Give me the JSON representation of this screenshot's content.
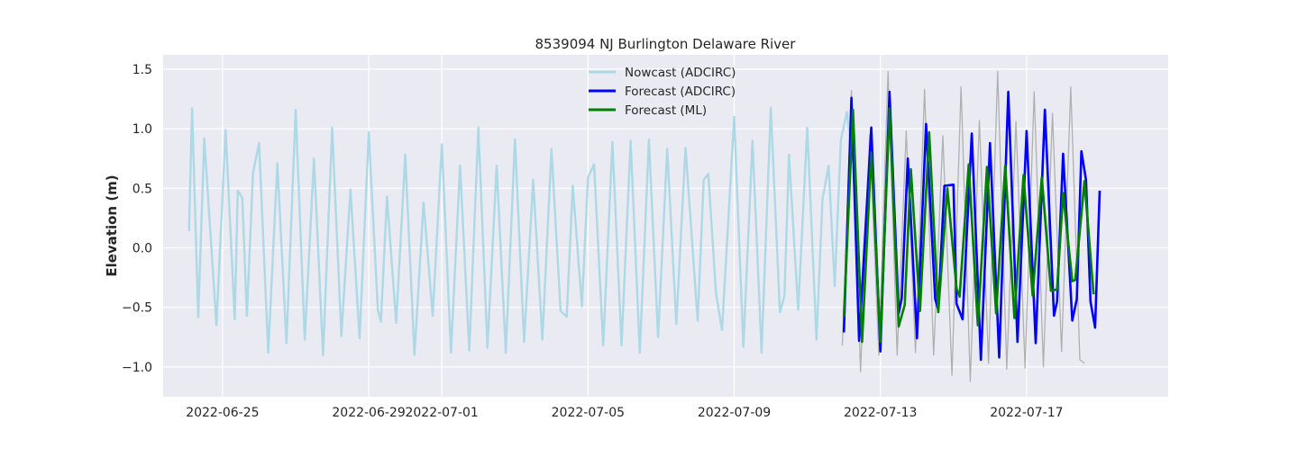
{
  "chart_data": {
    "type": "line",
    "title": "8539094 NJ Burlington Delaware River",
    "xlabel": "",
    "ylabel": "Elevation (m)",
    "xlim": [
      "2022-06-23T09:00",
      "2022-07-20T21:00"
    ],
    "ylim": [
      -1.25,
      1.62
    ],
    "x_ticks": [
      "2022-06-25",
      "2022-06-29",
      "2022-07-01",
      "2022-07-05",
      "2022-07-09",
      "2022-07-13",
      "2022-07-17"
    ],
    "y_ticks": [
      -1.0,
      -0.5,
      0.0,
      0.5,
      1.0,
      1.5
    ],
    "grid": true,
    "legend_position": "top-center",
    "legend": [
      "Nowcast (ADCIRC)",
      "Forecast (ADCIRC)",
      "Forecast (ML)"
    ],
    "colors": {
      "background": "#eaeaf2",
      "grid": "#ffffff",
      "nowcast": "#add8e6",
      "forecast_adcirc": "#0000ff",
      "forecast_ml": "#008000",
      "observed": "#b0b0b0"
    },
    "series": [
      {
        "name": "Nowcast (ADCIRC)",
        "color": "#add8e6",
        "points": [
          [
            "2022-06-24T02:00",
            0.14
          ],
          [
            "2022-06-24T04:00",
            1.17
          ],
          [
            "2022-06-24T08:00",
            -0.58
          ],
          [
            "2022-06-24T12:00",
            0.92
          ],
          [
            "2022-06-24T20:00",
            -0.65
          ],
          [
            "2022-06-25T02:00",
            0.99
          ],
          [
            "2022-06-25T08:00",
            -0.6
          ],
          [
            "2022-06-25T10:00",
            0.48
          ],
          [
            "2022-06-25T13:00",
            0.42
          ],
          [
            "2022-06-25T16:00",
            -0.57
          ],
          [
            "2022-06-25T20:00",
            0.63
          ],
          [
            "2022-06-26T00:00",
            0.88
          ],
          [
            "2022-06-26T06:00",
            -0.88
          ],
          [
            "2022-06-26T12:00",
            0.71
          ],
          [
            "2022-06-26T18:00",
            -0.8
          ],
          [
            "2022-06-27T00:00",
            1.16
          ],
          [
            "2022-06-27T06:00",
            -0.77
          ],
          [
            "2022-06-27T12:00",
            0.75
          ],
          [
            "2022-06-27T18:00",
            -0.9
          ],
          [
            "2022-06-28T00:00",
            1.01
          ],
          [
            "2022-06-28T06:00",
            -0.74
          ],
          [
            "2022-06-28T12:00",
            0.49
          ],
          [
            "2022-06-28T18:00",
            -0.76
          ],
          [
            "2022-06-29T00:00",
            0.97
          ],
          [
            "2022-06-29T06:00",
            -0.52
          ],
          [
            "2022-06-29T08:00",
            -0.62
          ],
          [
            "2022-06-29T12:00",
            0.43
          ],
          [
            "2022-06-29T18:00",
            -0.63
          ],
          [
            "2022-06-30T00:00",
            0.78
          ],
          [
            "2022-06-30T06:00",
            -0.9
          ],
          [
            "2022-06-30T12:00",
            0.38
          ],
          [
            "2022-06-30T18:00",
            -0.57
          ],
          [
            "2022-07-01T00:00",
            0.87
          ],
          [
            "2022-07-01T06:00",
            -0.88
          ],
          [
            "2022-07-01T12:00",
            0.69
          ],
          [
            "2022-07-01T18:00",
            -0.86
          ],
          [
            "2022-07-02T00:00",
            1.01
          ],
          [
            "2022-07-02T06:00",
            -0.84
          ],
          [
            "2022-07-02T12:00",
            0.69
          ],
          [
            "2022-07-02T18:00",
            -0.88
          ],
          [
            "2022-07-03T00:00",
            0.91
          ],
          [
            "2022-07-03T06:00",
            -0.79
          ],
          [
            "2022-07-03T12:00",
            0.57
          ],
          [
            "2022-07-03T18:00",
            -0.77
          ],
          [
            "2022-07-04T00:00",
            0.83
          ],
          [
            "2022-07-04T06:00",
            -0.53
          ],
          [
            "2022-07-04T10:00",
            -0.58
          ],
          [
            "2022-07-04T14:00",
            0.52
          ],
          [
            "2022-07-04T20:00",
            -0.49
          ],
          [
            "2022-07-05T00:00",
            0.59
          ],
          [
            "2022-07-05T04:00",
            0.7
          ],
          [
            "2022-07-05T10:00",
            -0.82
          ],
          [
            "2022-07-05T16:00",
            0.89
          ],
          [
            "2022-07-05T22:00",
            -0.82
          ],
          [
            "2022-07-06T04:00",
            0.9
          ],
          [
            "2022-07-06T10:00",
            -0.88
          ],
          [
            "2022-07-06T16:00",
            0.91
          ],
          [
            "2022-07-06T22:00",
            -0.75
          ],
          [
            "2022-07-07T04:00",
            0.83
          ],
          [
            "2022-07-07T10:00",
            -0.64
          ],
          [
            "2022-07-07T16:00",
            0.84
          ],
          [
            "2022-07-08T00:00",
            -0.61
          ],
          [
            "2022-07-08T04:00",
            0.57
          ],
          [
            "2022-07-08T07:00",
            0.62
          ],
          [
            "2022-07-08T12:00",
            -0.38
          ],
          [
            "2022-07-08T16:00",
            -0.69
          ],
          [
            "2022-07-09T00:00",
            1.1
          ],
          [
            "2022-07-09T06:00",
            -0.83
          ],
          [
            "2022-07-09T12:00",
            0.9
          ],
          [
            "2022-07-09T18:00",
            -0.88
          ],
          [
            "2022-07-10T00:00",
            1.18
          ],
          [
            "2022-07-10T06:00",
            -0.54
          ],
          [
            "2022-07-10T09:00",
            -0.4
          ],
          [
            "2022-07-10T12:00",
            0.78
          ],
          [
            "2022-07-10T18:00",
            -0.52
          ],
          [
            "2022-07-11T00:00",
            1.01
          ],
          [
            "2022-07-11T06:00",
            -0.77
          ],
          [
            "2022-07-11T10:00",
            0.41
          ],
          [
            "2022-07-11T14:00",
            0.69
          ],
          [
            "2022-07-11T18:00",
            -0.32
          ],
          [
            "2022-07-11T22:00",
            0.9
          ],
          [
            "2022-07-12T02:00",
            1.14
          ],
          [
            "2022-07-12T07:00",
            0.62
          ]
        ]
      },
      {
        "name": "Forecast (ADCIRC)",
        "color": "#0000ff",
        "points": [
          [
            "2022-07-12T00:00",
            -0.71
          ],
          [
            "2022-07-12T05:00",
            1.26
          ],
          [
            "2022-07-12T10:00",
            -0.78
          ],
          [
            "2022-07-12T18:00",
            1.01
          ],
          [
            "2022-07-13T00:00",
            -0.87
          ],
          [
            "2022-07-13T06:00",
            1.31
          ],
          [
            "2022-07-13T12:00",
            -0.55
          ],
          [
            "2022-07-13T14:00",
            -0.42
          ],
          [
            "2022-07-13T18:00",
            0.75
          ],
          [
            "2022-07-14T00:00",
            -0.76
          ],
          [
            "2022-07-14T06:00",
            1.04
          ],
          [
            "2022-07-14T12:00",
            -0.43
          ],
          [
            "2022-07-14T14:00",
            -0.52
          ],
          [
            "2022-07-14T18:00",
            0.52
          ],
          [
            "2022-07-15T00:00",
            0.53
          ],
          [
            "2022-07-15T02:00",
            -0.47
          ],
          [
            "2022-07-15T06:00",
            -0.6
          ],
          [
            "2022-07-15T12:00",
            0.96
          ],
          [
            "2022-07-15T18:00",
            -0.94
          ],
          [
            "2022-07-16T00:00",
            0.88
          ],
          [
            "2022-07-16T06:00",
            -0.92
          ],
          [
            "2022-07-16T12:00",
            1.31
          ],
          [
            "2022-07-16T18:00",
            -0.79
          ],
          [
            "2022-07-17T00:00",
            0.98
          ],
          [
            "2022-07-17T06:00",
            -0.8
          ],
          [
            "2022-07-17T12:00",
            1.16
          ],
          [
            "2022-07-17T18:00",
            -0.57
          ],
          [
            "2022-07-17T20:00",
            -0.45
          ],
          [
            "2022-07-18T00:00",
            0.79
          ],
          [
            "2022-07-18T06:00",
            -0.61
          ],
          [
            "2022-07-18T09:00",
            -0.43
          ],
          [
            "2022-07-18T12:00",
            0.81
          ],
          [
            "2022-07-18T15:00",
            0.57
          ],
          [
            "2022-07-18T18:00",
            -0.45
          ],
          [
            "2022-07-18T21:00",
            -0.67
          ],
          [
            "2022-07-19T00:00",
            0.48
          ]
        ]
      },
      {
        "name": "Forecast (ML)",
        "color": "#008000",
        "points": [
          [
            "2022-07-12T00:00",
            -0.58
          ],
          [
            "2022-07-12T06:00",
            1.16
          ],
          [
            "2022-07-12T12:00",
            -0.79
          ],
          [
            "2022-07-12T18:00",
            0.8
          ],
          [
            "2022-07-13T00:00",
            -0.79
          ],
          [
            "2022-07-13T06:00",
            1.17
          ],
          [
            "2022-07-13T12:00",
            -0.66
          ],
          [
            "2022-07-13T16:00",
            -0.48
          ],
          [
            "2022-07-13T20:00",
            0.66
          ],
          [
            "2022-07-14T02:00",
            -0.53
          ],
          [
            "2022-07-14T08:00",
            0.97
          ],
          [
            "2022-07-14T14:00",
            -0.54
          ],
          [
            "2022-07-14T20:00",
            0.5
          ],
          [
            "2022-07-15T02:00",
            -0.34
          ],
          [
            "2022-07-15T04:00",
            -0.41
          ],
          [
            "2022-07-15T10:00",
            0.7
          ],
          [
            "2022-07-15T16:00",
            -0.65
          ],
          [
            "2022-07-15T22:00",
            0.68
          ],
          [
            "2022-07-16T04:00",
            -0.55
          ],
          [
            "2022-07-16T10:00",
            0.69
          ],
          [
            "2022-07-16T16:00",
            -0.59
          ],
          [
            "2022-07-16T22:00",
            0.61
          ],
          [
            "2022-07-17T04:00",
            -0.4
          ],
          [
            "2022-07-17T10:00",
            0.59
          ],
          [
            "2022-07-17T16:00",
            -0.36
          ],
          [
            "2022-07-17T20:00",
            -0.35
          ],
          [
            "2022-07-18T00:00",
            0.46
          ],
          [
            "2022-07-18T06:00",
            -0.28
          ],
          [
            "2022-07-18T08:00",
            -0.27
          ],
          [
            "2022-07-18T14:00",
            0.56
          ],
          [
            "2022-07-18T20:00",
            -0.39
          ]
        ]
      },
      {
        "name": "",
        "color": "#b0b0b0",
        "points": [
          [
            "2022-07-11T23:00",
            -0.82
          ],
          [
            "2022-07-12T05:00",
            1.32
          ],
          [
            "2022-07-12T11:00",
            -1.04
          ],
          [
            "2022-07-12T17:00",
            0.95
          ],
          [
            "2022-07-12T23:00",
            -0.9
          ],
          [
            "2022-07-13T05:00",
            1.48
          ],
          [
            "2022-07-13T11:00",
            -0.9
          ],
          [
            "2022-07-13T17:00",
            0.98
          ],
          [
            "2022-07-13T23:00",
            -0.88
          ],
          [
            "2022-07-14T05:00",
            1.33
          ],
          [
            "2022-07-14T11:00",
            -0.9
          ],
          [
            "2022-07-14T17:00",
            0.94
          ],
          [
            "2022-07-14T23:00",
            -1.07
          ],
          [
            "2022-07-15T05:00",
            1.35
          ],
          [
            "2022-07-15T11:00",
            -1.12
          ],
          [
            "2022-07-15T17:00",
            1.07
          ],
          [
            "2022-07-15T23:00",
            -0.97
          ],
          [
            "2022-07-16T05:00",
            1.48
          ],
          [
            "2022-07-16T11:00",
            -1.02
          ],
          [
            "2022-07-16T17:00",
            1.06
          ],
          [
            "2022-07-16T23:00",
            -1.01
          ],
          [
            "2022-07-17T05:00",
            1.31
          ],
          [
            "2022-07-17T11:00",
            -1.0
          ],
          [
            "2022-07-17T17:00",
            1.13
          ],
          [
            "2022-07-17T23:00",
            -0.87
          ],
          [
            "2022-07-18T05:00",
            1.35
          ],
          [
            "2022-07-18T11:00",
            -0.94
          ],
          [
            "2022-07-18T14:00",
            -0.97
          ]
        ]
      }
    ]
  }
}
